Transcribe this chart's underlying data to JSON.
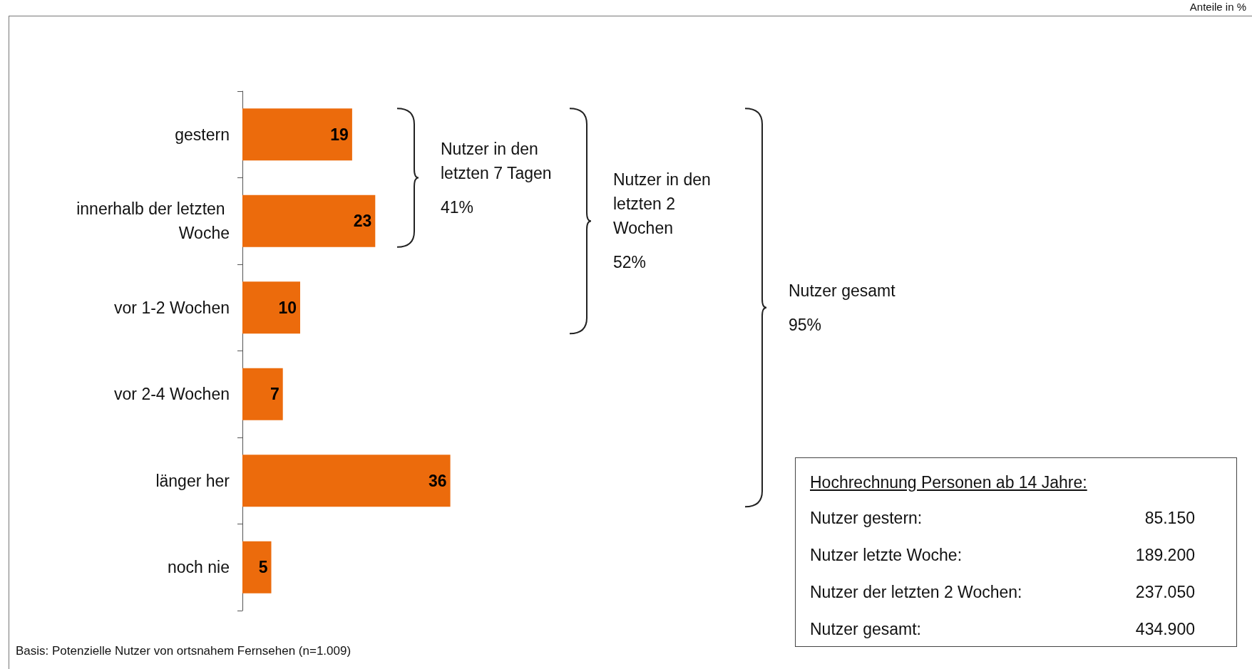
{
  "chart_data": [
    {
      "type": "bar",
      "orientation": "horizontal",
      "categories": [
        "gestern",
        "innerhalb der letzten Woche",
        "vor 1-2 Wochen",
        "vor 2-4 Wochen",
        "länger her",
        "noch nie"
      ],
      "values": [
        19,
        23,
        10,
        7,
        36,
        5
      ],
      "color": "#ec6b0c",
      "data_labels": true,
      "tick_labels": "y",
      "annotations": [
        "Anteile in %",
        "Basis: Potenzielle Nutzer von ortsnahem Fernsehen (n=1.009)",
        "Nutzer in den letzten 7 Tagen\n41%",
        "Nutzer in den letzten 2 Wochen\n52%",
        "Nutzer gesamt\n95%"
      ]
    },
    {
      "type": "other",
      "title": "Hochrechnung Personen ab 14 Jahre:",
      "annotations": [
        "Nutzer gestern:",
        "85.150",
        "Nutzer letzte Woche:",
        "189.200",
        "Nutzer der letzten 2 Wochen:",
        "237.050",
        "Nutzer gesamt:",
        "434.900"
      ]
    }
  ]
}
